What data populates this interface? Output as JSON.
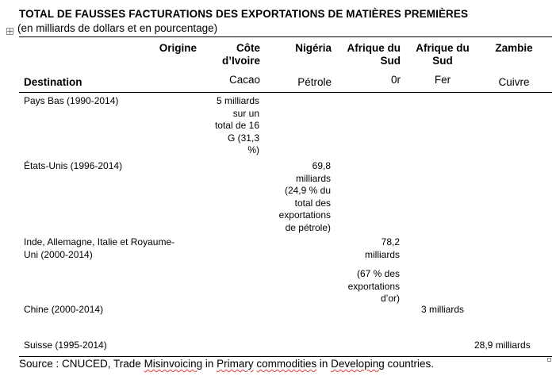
{
  "title": "TOTAL DE FAUSSES FACTURATIONS DES EXPORTATIONS DE MATIÈRES PREMIÈRES",
  "subtitle": "(en milliards de dollars et en pourcentage)",
  "table": {
    "headers": {
      "origine": "Origine",
      "destination": "Destination",
      "columns": [
        {
          "country_line1": "Côte",
          "country_line2": "d’Ivoire",
          "commodity": "Cacao"
        },
        {
          "country_line1": "Nigéria",
          "country_line2": "",
          "commodity": "Pétrole"
        },
        {
          "country_line1": "Afrique du",
          "country_line2": "Sud",
          "commodity": "0r"
        },
        {
          "country_line1": "Afrique du",
          "country_line2": "Sud",
          "commodity": "Fer"
        },
        {
          "country_line1": "Zambie",
          "country_line2": "",
          "commodity": "Cuivre"
        }
      ]
    },
    "rows": [
      {
        "destination_line1": "Pays Bas  (1990-2014)",
        "destination_line2": "",
        "value_lines": [
          "5 milliards",
          "sur un",
          "total de 16",
          "G (31,3",
          "%)"
        ]
      },
      {
        "destination_line1": "États-Unis (1996-2014)",
        "destination_line2": "",
        "value_lines": [
          "69,8",
          "milliards",
          "(24,9 % du",
          "total des",
          "exportations",
          "de pétrole)"
        ]
      },
      {
        "destination_line1": "Inde, Allemagne, Italie et Royaume-",
        "destination_line2": "Uni  (2000-2014)",
        "value_lines": [
          "78,2",
          "milliards",
          "(67 % des",
          "exportations",
          "d’or)"
        ]
      },
      {
        "destination_line1": "Chine  (2000-2014)",
        "destination_line2": "",
        "value_lines": [
          "3 milliards"
        ]
      },
      {
        "destination_line1": "Suisse (1995-2014)",
        "destination_line2": "",
        "value_lines": [
          "28,9 milliards"
        ]
      }
    ]
  },
  "source": {
    "prefix": "Source : CNUCED, Trade ",
    "w1": "Misinvoicing",
    "mid1": " in ",
    "w2": "Primary",
    " mid2": "",
    "mid2": " ",
    "w3": "commodities",
    "mid3": " in ",
    "w4": "Developing",
    "suffix": " countries."
  },
  "icons": {
    "table_move_handle": "move-arrows-icon",
    "table_resize_handle": "resize-square-icon"
  }
}
